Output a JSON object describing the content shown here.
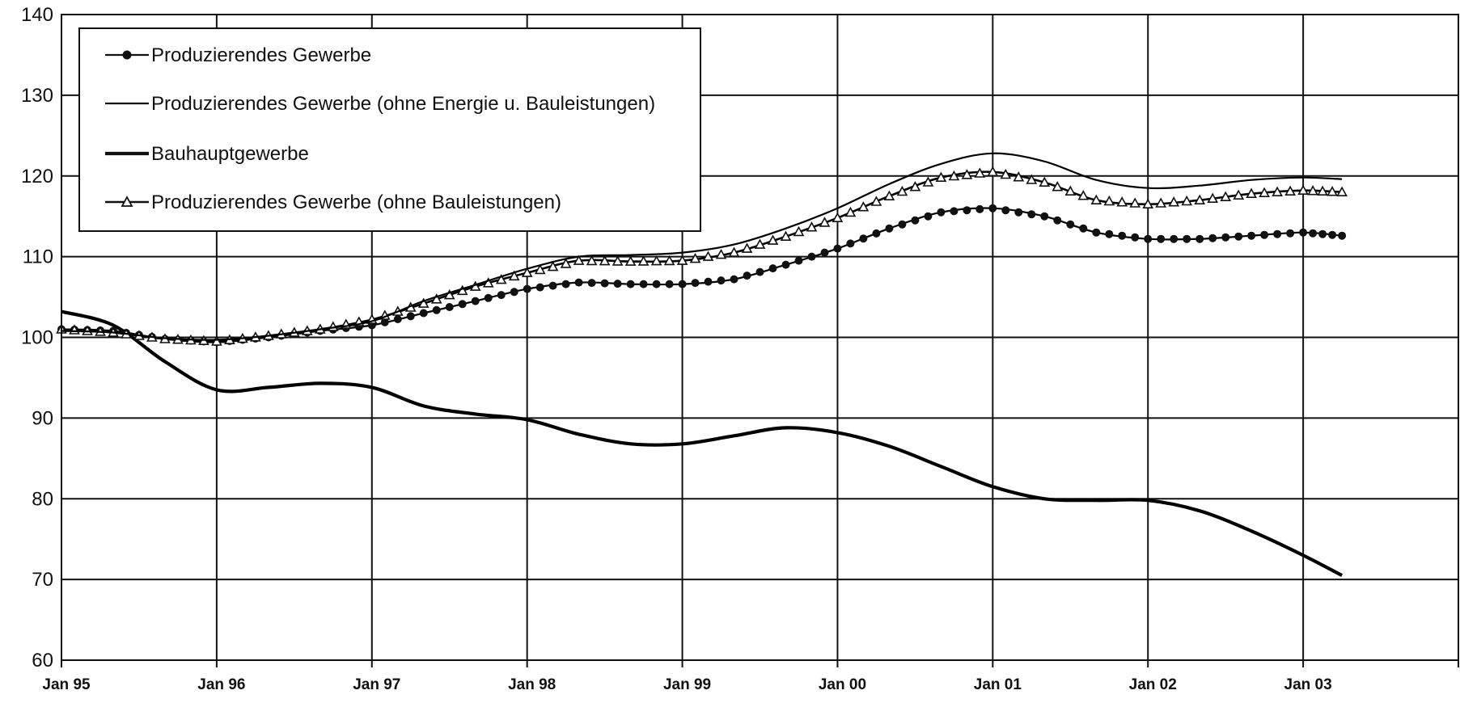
{
  "chart_data": {
    "type": "line",
    "title": "",
    "xlabel": "",
    "ylabel": "",
    "ylim": [
      60,
      140
    ],
    "yticks": [
      60,
      70,
      80,
      90,
      100,
      110,
      120,
      130,
      140
    ],
    "xlim": [
      "1995-01",
      "2004-01"
    ],
    "x_tick_labels": [
      "Jan 95",
      "Jan 96",
      "Jan 97",
      "Jan 98",
      "Jan 99",
      "Jan 00",
      "Jan 01",
      "Jan 02",
      "Jan 03"
    ],
    "grid": true,
    "legend_position": "top-left",
    "x": [
      "1995-01",
      "1995-05",
      "1995-09",
      "1996-01",
      "1996-05",
      "1996-09",
      "1997-01",
      "1997-05",
      "1997-09",
      "1998-01",
      "1998-05",
      "1998-09",
      "1999-01",
      "1999-05",
      "1999-09",
      "2000-01",
      "2000-05",
      "2000-09",
      "2001-01",
      "2001-05",
      "2001-09",
      "2002-01",
      "2002-05",
      "2002-09",
      "2003-01",
      "2003-04"
    ],
    "series": [
      {
        "name": "Produzierendes Gewerbe",
        "style": "dot-marker",
        "color": "#000000",
        "values": [
          101.0,
          100.8,
          99.8,
          99.4,
          100.0,
          100.8,
          101.5,
          103.0,
          104.5,
          106.0,
          106.8,
          106.6,
          106.6,
          107.2,
          109.0,
          111.0,
          113.5,
          115.5,
          116.0,
          115.0,
          113.0,
          112.2,
          112.2,
          112.6,
          113.0,
          112.6
        ]
      },
      {
        "name": "Produzierendes Gewerbe (ohne Energie u. Bauleistungen)",
        "style": "thin-line",
        "color": "#000000",
        "values": [
          100.8,
          100.6,
          99.9,
          99.7,
          100.2,
          101.0,
          102.0,
          104.5,
          106.5,
          108.5,
          110.0,
          110.2,
          110.5,
          111.5,
          113.5,
          116.0,
          119.0,
          121.5,
          122.8,
          121.8,
          119.5,
          118.5,
          118.8,
          119.5,
          119.8,
          119.6
        ]
      },
      {
        "name": "Bauhauptgewerbe",
        "style": "thick-line",
        "color": "#000000",
        "values": [
          103.2,
          101.5,
          97.0,
          93.5,
          93.8,
          94.3,
          93.8,
          91.5,
          90.5,
          89.8,
          88.0,
          86.8,
          86.8,
          87.8,
          88.8,
          88.2,
          86.5,
          84.0,
          81.5,
          80.0,
          79.8,
          79.8,
          78.5,
          76.0,
          73.0,
          70.5
        ]
      },
      {
        "name": "Produzierendes Gewerbe (ohne Bauleistungen)",
        "style": "triangle-marker",
        "color": "#000000",
        "values": [
          101.0,
          100.6,
          99.8,
          99.5,
          100.2,
          101.0,
          102.2,
          104.2,
          106.3,
          108.0,
          109.5,
          109.4,
          109.5,
          110.5,
          112.5,
          114.8,
          117.5,
          119.8,
          120.5,
          119.2,
          117.0,
          116.5,
          117.0,
          117.8,
          118.2,
          118.0
        ]
      }
    ]
  }
}
